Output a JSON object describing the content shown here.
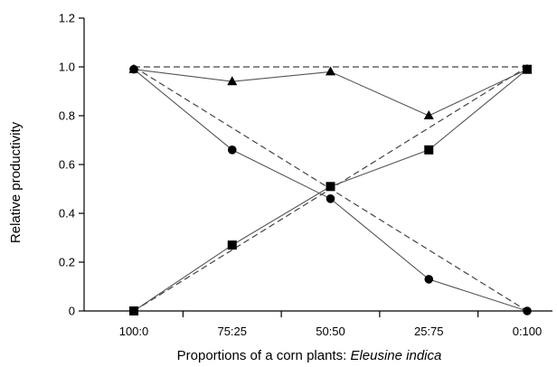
{
  "chart_data": {
    "type": "line",
    "categories": [
      "100:0",
      "75:25",
      "50:50",
      "25:75",
      "0:100"
    ],
    "xlabel_prefix": "Proportions of a corn plants: ",
    "xlabel_italic": "Eleusine indica",
    "ylabel": "Relative productivity",
    "ylim": [
      0,
      1.2
    ],
    "yticks": [
      "0",
      "0.2",
      "0.4",
      "0.6",
      "0.8",
      "1.0",
      "1.2"
    ],
    "grid": false,
    "legend": "none",
    "series": [
      {
        "marker": "triangle",
        "values": [
          0.99,
          0.94,
          0.98,
          0.8,
          0.99
        ]
      },
      {
        "marker": "circle",
        "values": [
          0.99,
          0.66,
          0.46,
          0.13,
          0.0
        ]
      },
      {
        "marker": "square",
        "values": [
          0.0,
          0.27,
          0.51,
          0.66,
          0.99
        ]
      }
    ],
    "reference_lines": [
      {
        "style": "dashed",
        "x": [
          "100:0",
          "0:100"
        ],
        "y": [
          1.0,
          1.0
        ]
      },
      {
        "style": "dashed",
        "x": [
          "100:0",
          "0:100"
        ],
        "y": [
          1.0,
          0.0
        ]
      },
      {
        "style": "dashed",
        "x": [
          "100:0",
          "0:100"
        ],
        "y": [
          0.0,
          1.0
        ]
      }
    ]
  }
}
